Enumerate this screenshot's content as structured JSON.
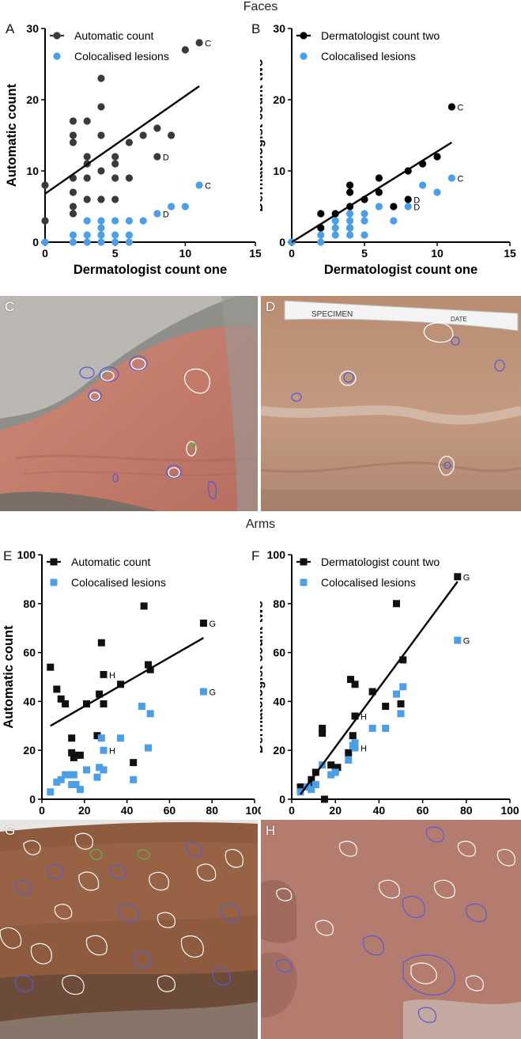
{
  "sections": {
    "faces": "Faces",
    "arms": "Arms"
  },
  "panel_labels": {
    "A": "A",
    "B": "B",
    "C": "C",
    "D": "D",
    "E": "E",
    "F": "F",
    "G": "G",
    "H": "H"
  },
  "colors": {
    "auto_circle": "#3a3a3a",
    "derm_circle": "#000000",
    "coloc": "#4a9fe8",
    "auto_square": "#111111",
    "contour_white": "#ffffff",
    "contour_blue": "#5a5ad8",
    "contour_green": "#5ab05a"
  },
  "specimen_tag": {
    "specimen": "SPECIMEN",
    "date": "DATE"
  },
  "chart_data": [
    {
      "id": "A",
      "type": "scatter",
      "marker": "circle",
      "xlabel": "Dermatologist count one",
      "ylabel": "Automatic count",
      "xlim": [
        0,
        15
      ],
      "ylim": [
        0,
        30
      ],
      "xticks": [
        0,
        5,
        10,
        15
      ],
      "yticks": [
        0,
        10,
        20,
        30
      ],
      "legend_position": "top-left",
      "series": [
        {
          "name": "Automatic count",
          "color_key": "auto_circle",
          "points": [
            [
              0,
              8
            ],
            [
              0,
              3
            ],
            [
              2,
              17
            ],
            [
              2,
              15
            ],
            [
              2,
              14
            ],
            [
              2,
              9
            ],
            [
              2,
              7
            ],
            [
              2,
              5
            ],
            [
              2,
              4
            ],
            [
              3,
              17
            ],
            [
              3,
              12
            ],
            [
              3,
              11
            ],
            [
              3,
              9
            ],
            [
              3,
              6
            ],
            [
              4,
              23
            ],
            [
              4,
              19
            ],
            [
              4,
              15
            ],
            [
              4,
              10
            ],
            [
              4,
              6
            ],
            [
              5,
              12
            ],
            [
              5,
              11
            ],
            [
              5,
              9
            ],
            [
              5,
              6
            ],
            [
              6,
              9
            ],
            [
              6,
              14
            ],
            [
              7,
              15
            ],
            [
              8,
              16
            ],
            [
              8,
              12
            ],
            [
              9,
              15
            ],
            [
              10,
              27
            ],
            [
              11,
              28
            ]
          ]
        },
        {
          "name": "Colocalised lesions",
          "color_key": "coloc",
          "points": [
            [
              0,
              0
            ],
            [
              2,
              0
            ],
            [
              2,
              1
            ],
            [
              3,
              0
            ],
            [
              3,
              1
            ],
            [
              3,
              3
            ],
            [
              4,
              0
            ],
            [
              4,
              1
            ],
            [
              4,
              2
            ],
            [
              4,
              3
            ],
            [
              5,
              0
            ],
            [
              5,
              1
            ],
            [
              5,
              3
            ],
            [
              6,
              0
            ],
            [
              6,
              1
            ],
            [
              6,
              3
            ],
            [
              7,
              3
            ],
            [
              8,
              4
            ],
            [
              9,
              5
            ],
            [
              10,
              5
            ],
            [
              11,
              8
            ]
          ]
        }
      ],
      "fit": {
        "x": [
          0,
          11
        ],
        "y": [
          6.8,
          21.9
        ]
      },
      "annotations": [
        {
          "text": "C",
          "x": 11,
          "y": 28
        },
        {
          "text": "D",
          "x": 8,
          "y": 12
        },
        {
          "text": "C",
          "x": 11,
          "y": 8
        },
        {
          "text": "D",
          "x": 8,
          "y": 4
        }
      ]
    },
    {
      "id": "B",
      "type": "scatter",
      "marker": "circle",
      "xlabel": "Dermatologist count one",
      "ylabel": "Dermatologist count two",
      "xlim": [
        0,
        15
      ],
      "ylim": [
        0,
        30
      ],
      "xticks": [
        0,
        5,
        10,
        15
      ],
      "yticks": [
        0,
        10,
        20,
        30
      ],
      "legend_position": "top-left",
      "series": [
        {
          "name": "Dermatologist count two",
          "color_key": "derm_circle",
          "points": [
            [
              0,
              0
            ],
            [
              2,
              4
            ],
            [
              2,
              2
            ],
            [
              3,
              4
            ],
            [
              4,
              8
            ],
            [
              4,
              7
            ],
            [
              4,
              5
            ],
            [
              4,
              2
            ],
            [
              5,
              6
            ],
            [
              6,
              9
            ],
            [
              6,
              7
            ],
            [
              7,
              5
            ],
            [
              8,
              10
            ],
            [
              8,
              6
            ],
            [
              9,
              11
            ],
            [
              10,
              12
            ],
            [
              11,
              19
            ]
          ]
        },
        {
          "name": "Colocalised lesions",
          "color_key": "coloc",
          "points": [
            [
              0,
              0
            ],
            [
              2,
              1
            ],
            [
              2,
              0
            ],
            [
              3,
              1
            ],
            [
              3,
              2
            ],
            [
              3,
              3
            ],
            [
              4,
              1
            ],
            [
              4,
              2
            ],
            [
              4,
              3
            ],
            [
              4,
              4
            ],
            [
              5,
              1
            ],
            [
              5,
              3
            ],
            [
              5,
              4
            ],
            [
              6,
              5
            ],
            [
              7,
              3
            ],
            [
              8,
              5
            ],
            [
              9,
              8
            ],
            [
              10,
              7
            ],
            [
              11,
              9
            ]
          ]
        }
      ],
      "fit": {
        "x": [
          0,
          11
        ],
        "y": [
          0,
          14
        ]
      },
      "annotations": [
        {
          "text": "C",
          "x": 11,
          "y": 19
        },
        {
          "text": "D",
          "x": 8,
          "y": 6
        },
        {
          "text": "D",
          "x": 8,
          "y": 5
        },
        {
          "text": "C",
          "x": 11,
          "y": 9
        }
      ]
    },
    {
      "id": "E",
      "type": "scatter",
      "marker": "square",
      "xlabel": "Dermatologist count one",
      "ylabel": "Automatic count",
      "xlim": [
        0,
        100
      ],
      "ylim": [
        0,
        100
      ],
      "xticks": [
        0,
        20,
        40,
        60,
        80,
        100
      ],
      "yticks": [
        0,
        20,
        40,
        60,
        80,
        100
      ],
      "legend_position": "top-left",
      "series": [
        {
          "name": "Automatic count",
          "color_key": "auto_square",
          "points": [
            [
              4,
              54
            ],
            [
              7,
              45
            ],
            [
              9,
              41
            ],
            [
              11,
              39
            ],
            [
              14,
              25
            ],
            [
              14,
              19
            ],
            [
              15,
              17
            ],
            [
              16,
              18
            ],
            [
              18,
              18
            ],
            [
              21,
              39
            ],
            [
              26,
              26
            ],
            [
              27,
              43
            ],
            [
              28,
              64
            ],
            [
              29,
              51
            ],
            [
              29,
              39
            ],
            [
              37,
              47
            ],
            [
              43,
              15
            ],
            [
              48,
              79
            ],
            [
              50,
              55
            ],
            [
              51,
              53
            ],
            [
              76,
              72
            ]
          ]
        },
        {
          "name": "Colocalised lesions",
          "color_key": "coloc",
          "points": [
            [
              4,
              3
            ],
            [
              7,
              7
            ],
            [
              9,
              8
            ],
            [
              11,
              10
            ],
            [
              13,
              10
            ],
            [
              14,
              6
            ],
            [
              15,
              10
            ],
            [
              16,
              6
            ],
            [
              18,
              4
            ],
            [
              21,
              12
            ],
            [
              26,
              9
            ],
            [
              27,
              13
            ],
            [
              28,
              25
            ],
            [
              29,
              20
            ],
            [
              29,
              12
            ],
            [
              37,
              25
            ],
            [
              43,
              8
            ],
            [
              47,
              38
            ],
            [
              50,
              21
            ],
            [
              51,
              35
            ],
            [
              76,
              44
            ]
          ]
        }
      ],
      "fit": {
        "x": [
          4,
          76
        ],
        "y": [
          30,
          66
        ]
      },
      "annotations": [
        {
          "text": "G",
          "x": 76,
          "y": 72
        },
        {
          "text": "H",
          "x": 29,
          "y": 51
        },
        {
          "text": "G",
          "x": 76,
          "y": 44
        },
        {
          "text": "H",
          "x": 29,
          "y": 20
        }
      ]
    },
    {
      "id": "F",
      "type": "scatter",
      "marker": "square",
      "xlabel": "Dermatologist count one",
      "ylabel": "Dermatologist count two",
      "xlim": [
        0,
        100
      ],
      "ylim": [
        0,
        100
      ],
      "xticks": [
        0,
        20,
        40,
        60,
        80,
        100
      ],
      "yticks": [
        0,
        20,
        40,
        60,
        80,
        100
      ],
      "legend_position": "top-left",
      "series": [
        {
          "name": "Dermatologist count two",
          "color_key": "auto_square",
          "points": [
            [
              4,
              5
            ],
            [
              6,
              5
            ],
            [
              8,
              5
            ],
            [
              9,
              8
            ],
            [
              11,
              11
            ],
            [
              14,
              29
            ],
            [
              14,
              27
            ],
            [
              15,
              0
            ],
            [
              18,
              14
            ],
            [
              20,
              12
            ],
            [
              21,
              13
            ],
            [
              26,
              19
            ],
            [
              27,
              49
            ],
            [
              28,
              26
            ],
            [
              29,
              34
            ],
            [
              29,
              47
            ],
            [
              37,
              44
            ],
            [
              43,
              38
            ],
            [
              48,
              80
            ],
            [
              50,
              39
            ],
            [
              51,
              57
            ],
            [
              76,
              91
            ]
          ]
        },
        {
          "name": "Colocalised lesions",
          "color_key": "coloc",
          "points": [
            [
              4,
              3
            ],
            [
              7,
              5
            ],
            [
              9,
              4
            ],
            [
              11,
              6
            ],
            [
              14,
              14
            ],
            [
              18,
              10
            ],
            [
              20,
              11
            ],
            [
              26,
              16
            ],
            [
              28,
              22
            ],
            [
              29,
              21
            ],
            [
              29,
              23
            ],
            [
              37,
              29
            ],
            [
              43,
              29
            ],
            [
              48,
              43
            ],
            [
              50,
              35
            ],
            [
              51,
              46
            ],
            [
              76,
              65
            ]
          ]
        }
      ],
      "fit": {
        "x": [
          4,
          76
        ],
        "y": [
          2,
          89
        ]
      },
      "annotations": [
        {
          "text": "G",
          "x": 76,
          "y": 91
        },
        {
          "text": "H",
          "x": 29,
          "y": 34
        },
        {
          "text": "H",
          "x": 29,
          "y": 21
        },
        {
          "text": "G",
          "x": 76,
          "y": 65
        }
      ]
    }
  ]
}
